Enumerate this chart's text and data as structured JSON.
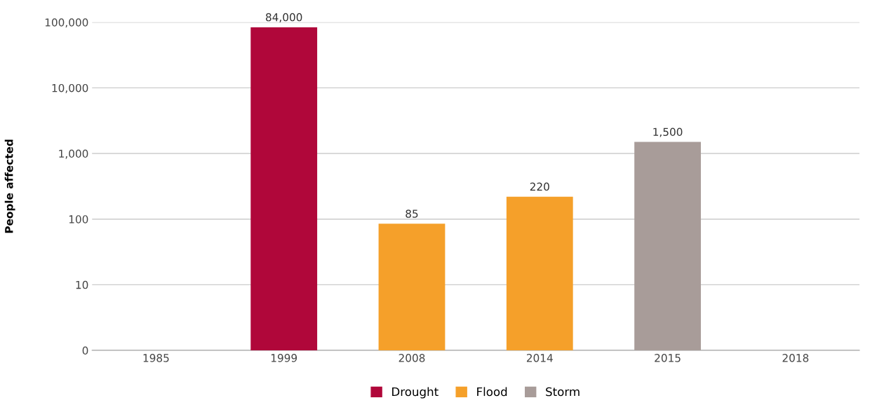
{
  "chart_data": {
    "type": "bar",
    "ylabel": "People affected",
    "categories": [
      "1985",
      "1999",
      "2008",
      "2014",
      "2015",
      "2018"
    ],
    "series": [
      {
        "name": "Drought",
        "color": "#b0073a",
        "values": [
          null,
          84000,
          null,
          null,
          null,
          null
        ],
        "value_labels": [
          null,
          "84,000",
          null,
          null,
          null,
          null
        ]
      },
      {
        "name": "Flood",
        "color": "#f5a02a",
        "values": [
          null,
          null,
          85,
          220,
          null,
          null
        ],
        "value_labels": [
          null,
          null,
          "85",
          "220",
          null,
          null
        ]
      },
      {
        "name": "Storm",
        "color": "#a89c99",
        "values": [
          null,
          null,
          null,
          null,
          1500,
          null
        ],
        "value_labels": [
          null,
          null,
          null,
          null,
          "1,500",
          null
        ]
      }
    ],
    "log": "y",
    "ylim": [
      0,
      100000
    ],
    "yticks": [
      0,
      10,
      100,
      {
        "value": 1000,
        "label": "1,000"
      },
      {
        "value": 10000,
        "label": "10,000"
      },
      {
        "value": 100000,
        "label": "100,000"
      }
    ],
    "grid": "y",
    "legend": "bottom"
  }
}
